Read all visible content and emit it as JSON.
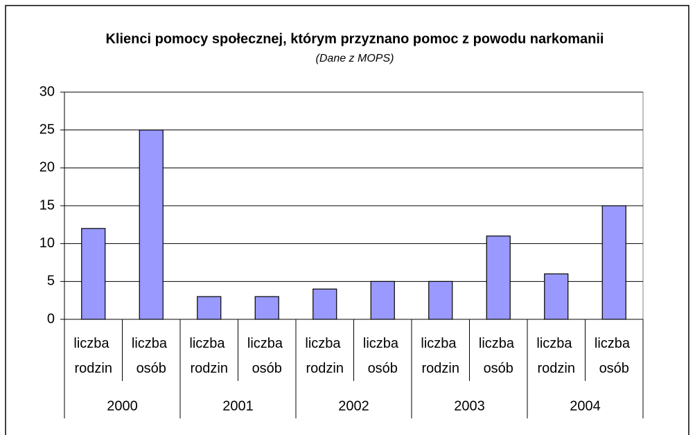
{
  "chart_data": {
    "type": "bar",
    "title": "Klienci pomocy społecznej, którym przyznano pomoc z powodu narkomanii",
    "subtitle": "(Dane z MOPS)",
    "categories": [
      "liczba rodzin",
      "liczba osób",
      "liczba rodzin",
      "liczba osób",
      "liczba rodzin",
      "liczba osób",
      "liczba rodzin",
      "liczba osób",
      "liczba rodzin",
      "liczba osób"
    ],
    "groups": [
      "2000",
      "2001",
      "2002",
      "2003",
      "2004"
    ],
    "values": [
      12,
      25,
      3,
      3,
      4,
      5,
      5,
      11,
      6,
      15
    ],
    "color": "#9999ff",
    "ylim": [
      0,
      30
    ],
    "yticks": [
      0,
      5,
      10,
      15,
      20,
      25,
      30
    ],
    "grid": true
  }
}
